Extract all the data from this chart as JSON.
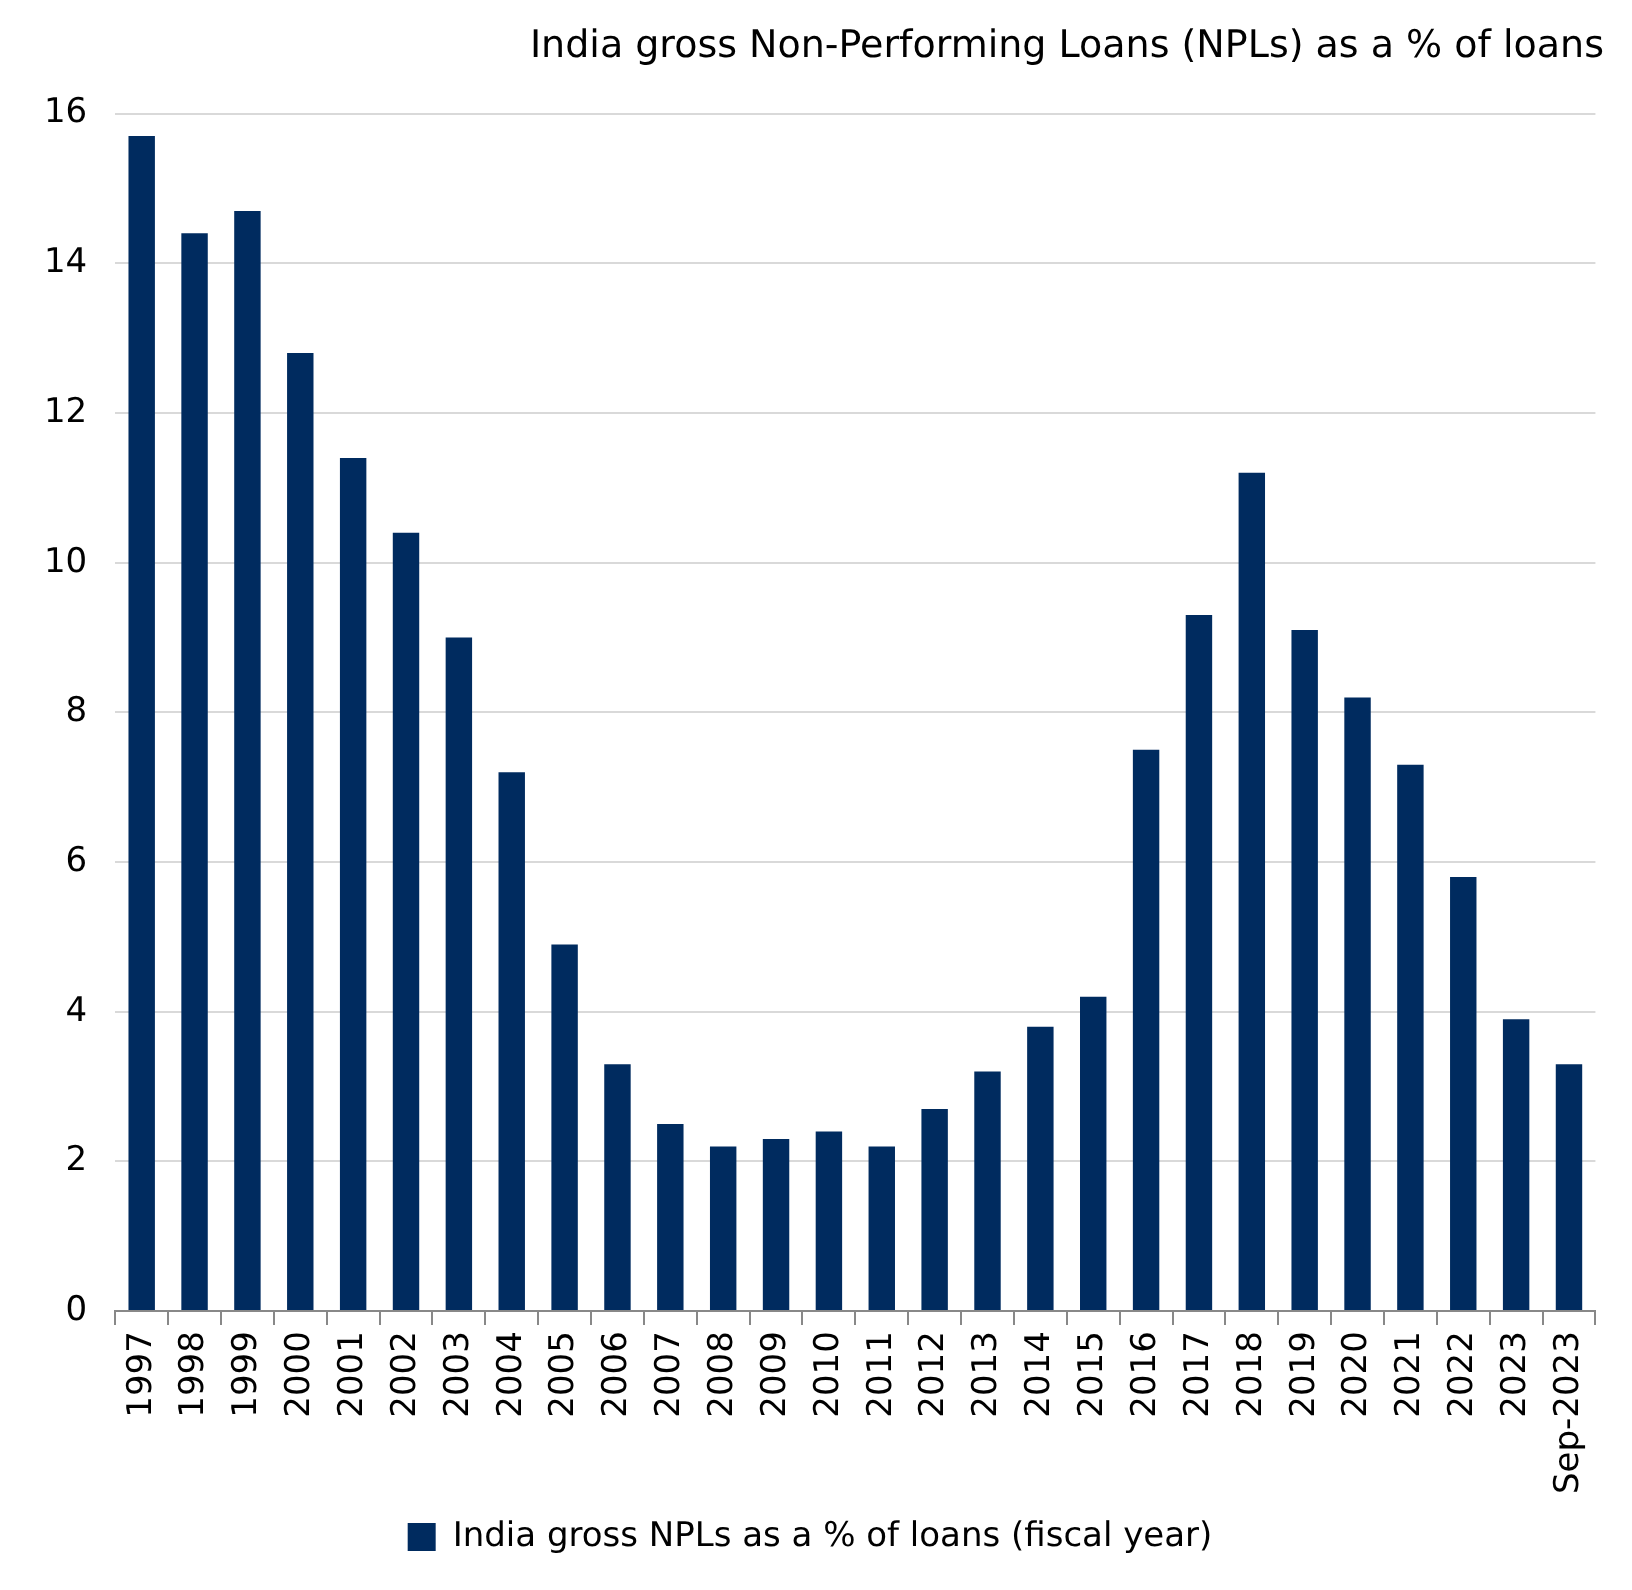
{
  "chart_data": {
    "type": "bar",
    "title": "India gross Non-Performing Loans (NPLs) as a % of loans",
    "categories": [
      "1997",
      "1998",
      "1999",
      "2000",
      "2001",
      "2002",
      "2003",
      "2004",
      "2005",
      "2006",
      "2007",
      "2008",
      "2009",
      "2010",
      "2011",
      "2012",
      "2013",
      "2014",
      "2015",
      "2016",
      "2017",
      "2018",
      "2019",
      "2020",
      "2021",
      "2022",
      "2023",
      "Sep-2023"
    ],
    "series": [
      {
        "name": "India gross NPLs as a % of loans (fiscal year)",
        "color": "#002b5f",
        "values": [
          15.7,
          14.4,
          14.7,
          12.8,
          11.4,
          10.4,
          9.0,
          7.2,
          4.9,
          3.3,
          2.5,
          2.2,
          2.3,
          2.4,
          2.2,
          2.7,
          3.2,
          3.8,
          4.2,
          7.5,
          9.3,
          11.2,
          9.1,
          8.2,
          7.3,
          5.8,
          3.9,
          3.3
        ]
      }
    ],
    "ylim": [
      0,
      16
    ],
    "yticks": [
      0,
      2,
      4,
      6,
      8,
      10,
      12,
      14,
      16
    ],
    "grid": "y",
    "legend": "bottom"
  }
}
